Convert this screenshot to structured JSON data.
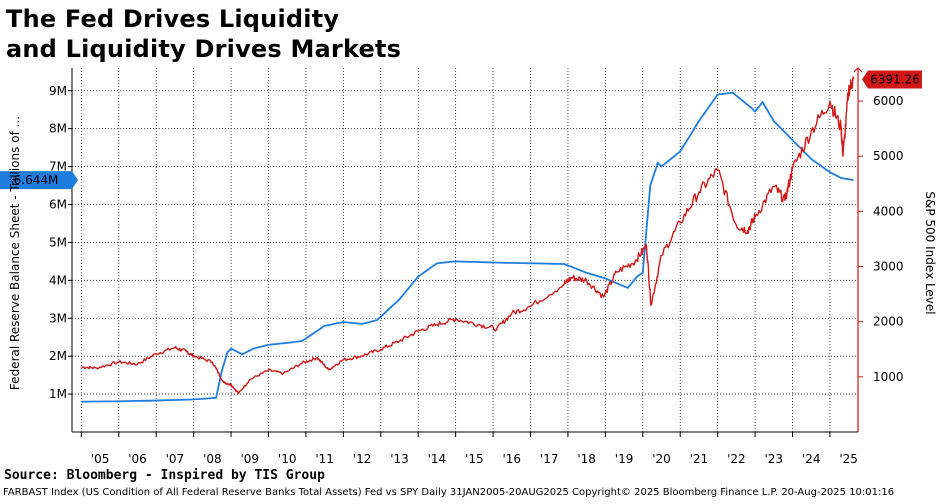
{
  "header": {
    "title_line1": "The Fed Drives Liquidity",
    "title_line2": "and Liquidity Drives Markets"
  },
  "source": "Source: Bloomberg - Inspired by TIS Group",
  "footer": "FARBAST Index (US Condition of All Federal Reserve Banks Total Assets) Fed vs SPY  Daily 31JAN2005-20AUG2025    Copyright© 2025 Bloomberg Finance L.P.   20-Aug-2025 10:01:16",
  "colors": {
    "fed": "#1f7de0",
    "spx": "#d01818",
    "grid": "#222222"
  },
  "chart_data": {
    "type": "line",
    "xlabel": "",
    "x_tick_labels": [
      "'05",
      "'06",
      "'07",
      "'08",
      "'09",
      "'10",
      "'11",
      "'12",
      "'13",
      "'14",
      "'15",
      "'16",
      "'17",
      "'18",
      "'19",
      "'20",
      "'21",
      "'22",
      "'23",
      "'24",
      "'25"
    ],
    "x_range": [
      2004.75,
      2025.75
    ],
    "left_axis": {
      "label": "Federal Reserve Balance Sheet - Trillions of ...",
      "ylim": [
        0,
        9.6
      ],
      "tick_values": [
        1,
        2,
        3,
        4,
        5,
        6,
        7,
        8,
        9
      ],
      "tick_labels": [
        "1M",
        "2M",
        "3M",
        "4M",
        "5M",
        "6M",
        "7M",
        "8M",
        "9M"
      ],
      "last_value_label": "6.644M"
    },
    "right_axis": {
      "label": "S&P 500 Index Level",
      "ylim": [
        0,
        6600
      ],
      "tick_values": [
        1000,
        2000,
        3000,
        4000,
        5000,
        6000
      ],
      "tick_labels": [
        "1000",
        "2000",
        "3000",
        "4000",
        "5000",
        "6000"
      ],
      "last_value_label": "6391.26"
    },
    "series": [
      {
        "name": "Fed Balance Sheet (Trillions)",
        "axis": "left",
        "points": [
          [
            2005.0,
            0.8
          ],
          [
            2006.0,
            0.81
          ],
          [
            2007.0,
            0.83
          ],
          [
            2008.0,
            0.86
          ],
          [
            2008.6,
            0.9
          ],
          [
            2008.75,
            1.6
          ],
          [
            2008.9,
            2.1
          ],
          [
            2009.0,
            2.2
          ],
          [
            2009.3,
            2.05
          ],
          [
            2009.6,
            2.2
          ],
          [
            2010.0,
            2.3
          ],
          [
            2010.5,
            2.35
          ],
          [
            2010.9,
            2.4
          ],
          [
            2011.5,
            2.8
          ],
          [
            2012.0,
            2.9
          ],
          [
            2012.5,
            2.85
          ],
          [
            2012.9,
            2.95
          ],
          [
            2013.5,
            3.5
          ],
          [
            2014.0,
            4.1
          ],
          [
            2014.5,
            4.45
          ],
          [
            2015.0,
            4.5
          ],
          [
            2016.0,
            4.47
          ],
          [
            2017.0,
            4.45
          ],
          [
            2017.9,
            4.43
          ],
          [
            2018.5,
            4.2
          ],
          [
            2019.0,
            4.05
          ],
          [
            2019.6,
            3.8
          ],
          [
            2019.85,
            4.1
          ],
          [
            2020.0,
            4.2
          ],
          [
            2020.2,
            6.5
          ],
          [
            2020.4,
            7.1
          ],
          [
            2020.5,
            7.0
          ],
          [
            2021.0,
            7.4
          ],
          [
            2021.5,
            8.2
          ],
          [
            2022.0,
            8.9
          ],
          [
            2022.4,
            8.95
          ],
          [
            2022.9,
            8.55
          ],
          [
            2023.0,
            8.45
          ],
          [
            2023.2,
            8.7
          ],
          [
            2023.5,
            8.2
          ],
          [
            2024.0,
            7.7
          ],
          [
            2024.5,
            7.2
          ],
          [
            2025.0,
            6.85
          ],
          [
            2025.3,
            6.7
          ],
          [
            2025.63,
            6.644
          ]
        ]
      },
      {
        "name": "S&P 500",
        "axis": "right",
        "points": [
          [
            2005.0,
            1180
          ],
          [
            2005.4,
            1160
          ],
          [
            2006.0,
            1270
          ],
          [
            2006.5,
            1230
          ],
          [
            2007.0,
            1420
          ],
          [
            2007.5,
            1530
          ],
          [
            2007.8,
            1460
          ],
          [
            2008.0,
            1380
          ],
          [
            2008.5,
            1270
          ],
          [
            2008.8,
            900
          ],
          [
            2009.0,
            860
          ],
          [
            2009.2,
            700
          ],
          [
            2009.5,
            950
          ],
          [
            2010.0,
            1120
          ],
          [
            2010.4,
            1060
          ],
          [
            2010.9,
            1250
          ],
          [
            2011.3,
            1350
          ],
          [
            2011.6,
            1130
          ],
          [
            2012.0,
            1310
          ],
          [
            2012.5,
            1380
          ],
          [
            2013.0,
            1500
          ],
          [
            2013.5,
            1650
          ],
          [
            2014.0,
            1830
          ],
          [
            2014.5,
            1950
          ],
          [
            2015.0,
            2050
          ],
          [
            2015.6,
            1950
          ],
          [
            2016.1,
            1870
          ],
          [
            2016.5,
            2150
          ],
          [
            2017.0,
            2280
          ],
          [
            2017.9,
            2680
          ],
          [
            2018.1,
            2800
          ],
          [
            2018.5,
            2750
          ],
          [
            2018.95,
            2450
          ],
          [
            2019.3,
            2900
          ],
          [
            2019.8,
            3100
          ],
          [
            2020.1,
            3380
          ],
          [
            2020.22,
            2300
          ],
          [
            2020.5,
            3200
          ],
          [
            2021.0,
            3800
          ],
          [
            2021.5,
            4350
          ],
          [
            2022.0,
            4750
          ],
          [
            2022.5,
            3750
          ],
          [
            2022.8,
            3650
          ],
          [
            2023.0,
            3900
          ],
          [
            2023.5,
            4450
          ],
          [
            2023.8,
            4200
          ],
          [
            2024.0,
            4770
          ],
          [
            2024.5,
            5450
          ],
          [
            2025.0,
            6000
          ],
          [
            2025.3,
            5500
          ],
          [
            2025.35,
            5000
          ],
          [
            2025.5,
            6200
          ],
          [
            2025.63,
            6391.26
          ]
        ]
      }
    ]
  }
}
